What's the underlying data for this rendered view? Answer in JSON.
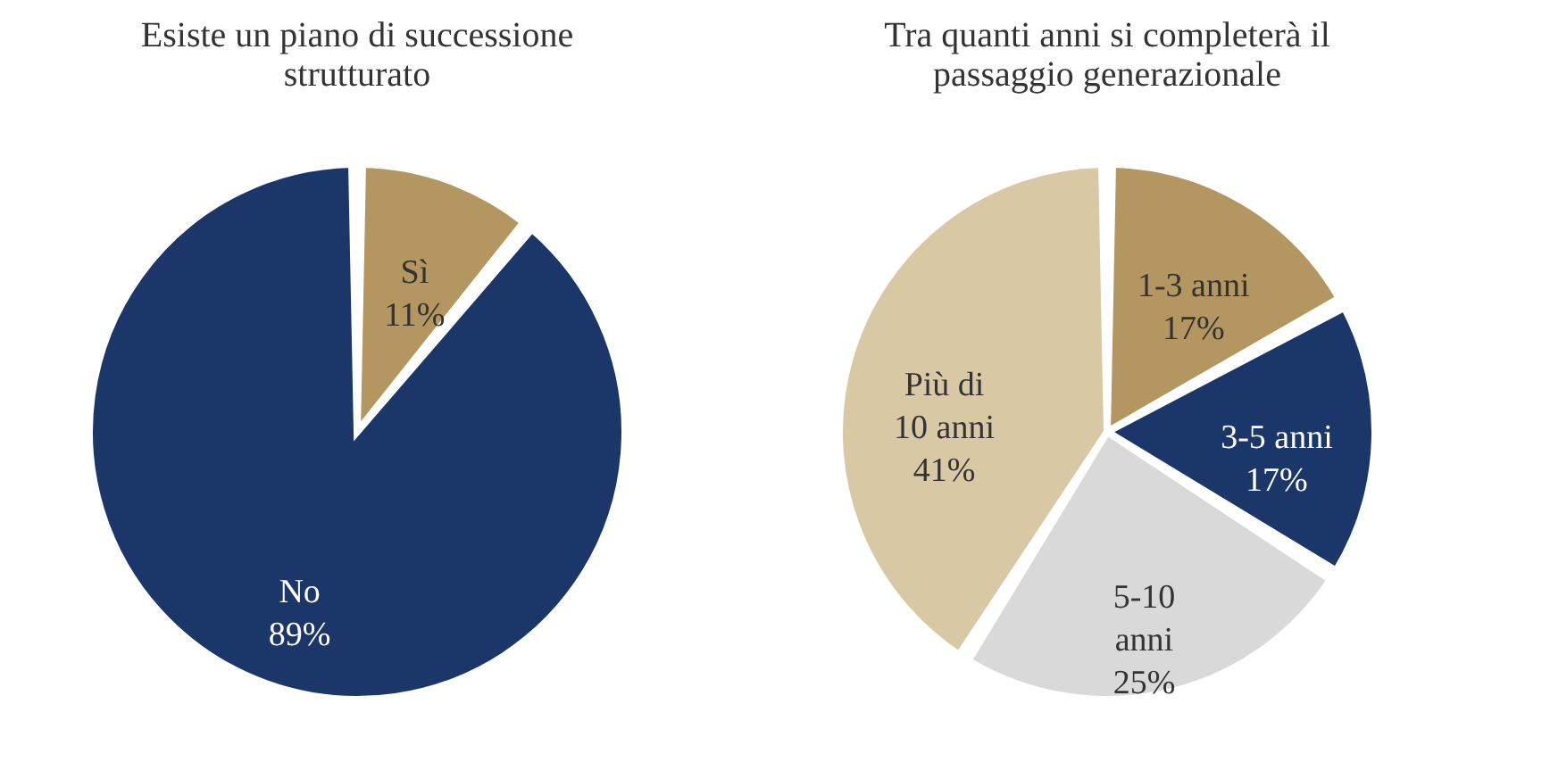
{
  "chart_data": [
    {
      "type": "pie",
      "title": "Esiste un piano di successione strutturato",
      "categories": [
        "Sì",
        "No"
      ],
      "values": [
        11,
        89
      ],
      "value_labels": [
        "11%",
        "89%"
      ],
      "colors": [
        "#b39660",
        "#1b3668"
      ],
      "legend": false
    },
    {
      "type": "pie",
      "title": "Tra quanti anni si completerà il passaggio generazionale",
      "categories": [
        "1-3 anni",
        "3-5 anni",
        "5-10 anni",
        "Più di 10 anni"
      ],
      "values": [
        17,
        17,
        25,
        41
      ],
      "value_labels": [
        "17%",
        "17%",
        "25%",
        "41%"
      ],
      "colors": [
        "#b39660",
        "#1b3668",
        "#d9d9d9",
        "#d8c8a4"
      ],
      "legend": false
    }
  ]
}
